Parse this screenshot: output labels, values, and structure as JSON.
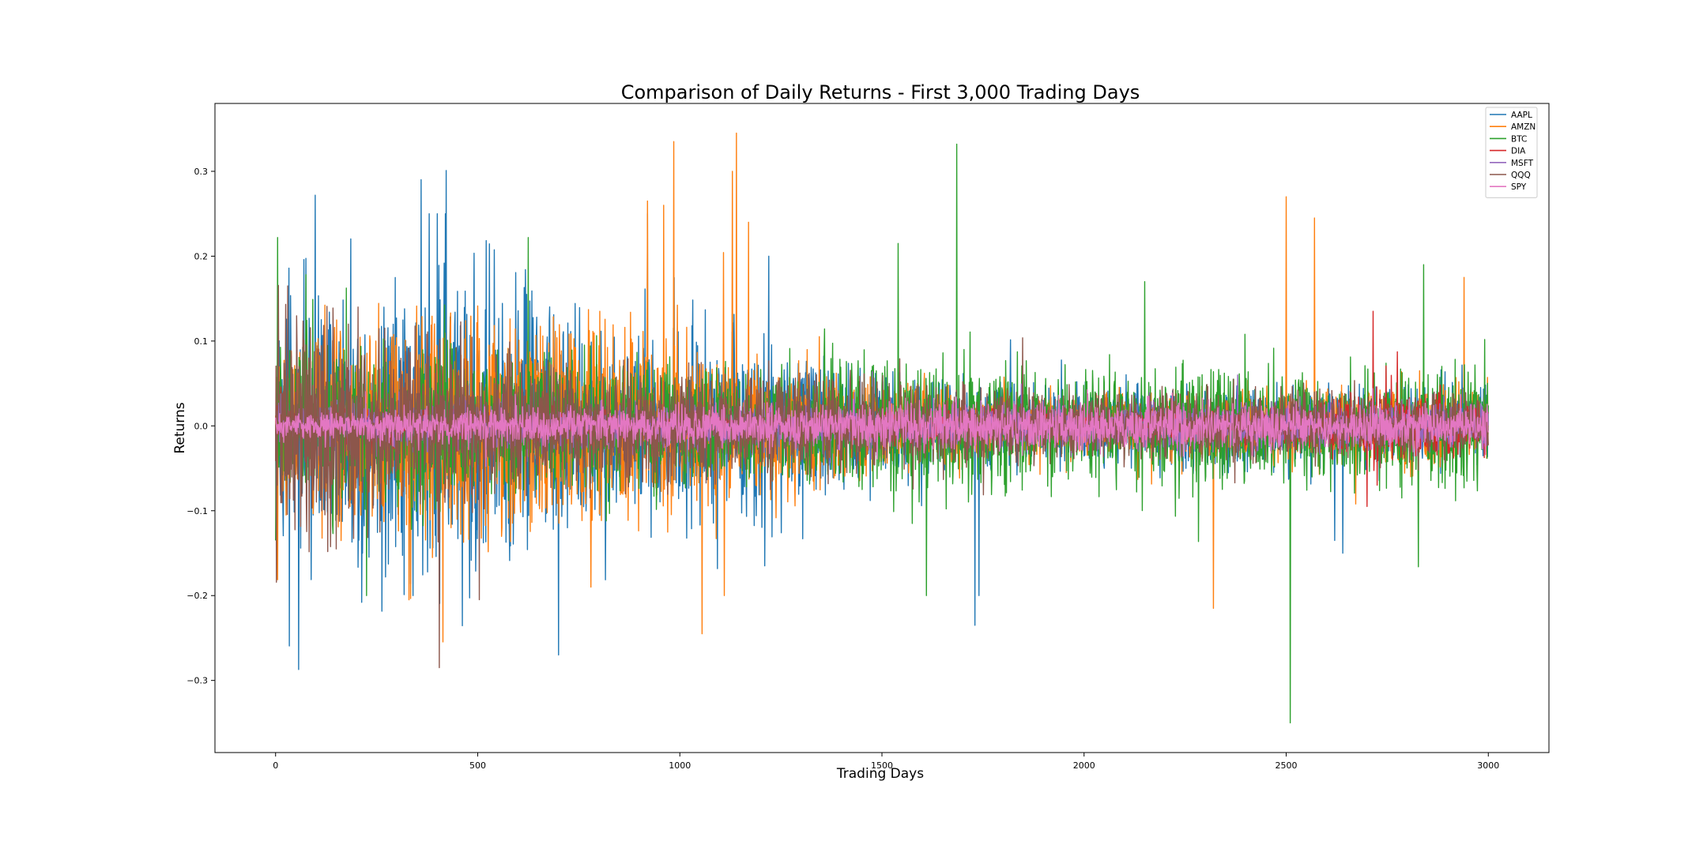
{
  "chart_data": {
    "type": "line",
    "title": "Comparison of Daily Returns - First 3,000 Trading Days",
    "xlabel": "Trading Days",
    "ylabel": "Returns",
    "xlim": [
      -150,
      3150
    ],
    "ylim": [
      -0.385,
      0.38
    ],
    "xticks": [
      0,
      500,
      1000,
      1500,
      2000,
      2500,
      3000
    ],
    "yticks": [
      -0.3,
      -0.2,
      -0.1,
      0.0,
      0.1,
      0.2,
      0.3
    ],
    "xtick_labels": [
      "0",
      "500",
      "1000",
      "1500",
      "2000",
      "2500",
      "3000"
    ],
    "ytick_labels": [
      "−0.3",
      "−0.2",
      "−0.1",
      "0.0",
      "0.1",
      "0.2",
      "0.3"
    ],
    "grid": false,
    "legend_position": "top-right",
    "x": {
      "start": 0,
      "end": 3000
    },
    "series": [
      {
        "name": "AAPL",
        "color": "#1f77b4",
        "envelope": [
          [
            0,
            0.1
          ],
          [
            400,
            0.15
          ],
          [
            800,
            0.09
          ],
          [
            1200,
            0.08
          ],
          [
            1600,
            0.04
          ],
          [
            2000,
            0.035
          ],
          [
            2400,
            0.035
          ],
          [
            2800,
            0.035
          ],
          [
            3000,
            0.035
          ]
        ],
        "spikes": [
          [
            380,
            0.25
          ],
          [
            400,
            0.25
          ],
          [
            420,
            0.25
          ],
          [
            920,
            0.25
          ],
          [
            1220,
            0.2
          ],
          [
            1210,
            -0.165
          ],
          [
            1730,
            -0.235
          ],
          [
            1740,
            0.165
          ],
          [
            700,
            -0.27
          ],
          [
            340,
            -0.2
          ],
          [
            1740,
            -0.2
          ],
          [
            2640,
            -0.15
          ],
          [
            2620,
            -0.135
          ]
        ]
      },
      {
        "name": "AMZN",
        "color": "#ff7f0e",
        "envelope": [
          [
            0,
            0.08
          ],
          [
            400,
            0.1
          ],
          [
            800,
            0.09
          ],
          [
            1200,
            0.06
          ],
          [
            1600,
            0.035
          ],
          [
            2000,
            0.03
          ],
          [
            2400,
            0.03
          ],
          [
            2800,
            0.035
          ],
          [
            3000,
            0.035
          ]
        ],
        "spikes": [
          [
            985,
            0.335
          ],
          [
            1140,
            0.345
          ],
          [
            920,
            0.265
          ],
          [
            960,
            0.26
          ],
          [
            1130,
            0.3
          ],
          [
            1170,
            0.24
          ],
          [
            2500,
            0.27
          ],
          [
            2570,
            0.245
          ],
          [
            1055,
            -0.245
          ],
          [
            2320,
            -0.215
          ],
          [
            330,
            -0.205
          ],
          [
            1110,
            -0.2
          ],
          [
            780,
            -0.19
          ],
          [
            2940,
            0.175
          ]
        ]
      },
      {
        "name": "BTC",
        "color": "#2ca02c",
        "envelope": [
          [
            0,
            0.07
          ],
          [
            400,
            0.07
          ],
          [
            800,
            0.06
          ],
          [
            1200,
            0.05
          ],
          [
            1600,
            0.06
          ],
          [
            2000,
            0.05
          ],
          [
            2400,
            0.05
          ],
          [
            2800,
            0.05
          ],
          [
            3000,
            0.05
          ]
        ],
        "spikes": [
          [
            5,
            0.222
          ],
          [
            1685,
            0.332
          ],
          [
            2510,
            -0.35
          ],
          [
            625,
            -0.22
          ],
          [
            225,
            -0.2
          ],
          [
            1610,
            -0.2
          ],
          [
            1540,
            0.215
          ],
          [
            625,
            0.222
          ],
          [
            2840,
            0.19
          ],
          [
            2150,
            0.17
          ],
          [
            0,
            -0.135
          ]
        ]
      },
      {
        "name": "DIA",
        "color": "#d62728",
        "envelope": [
          [
            0,
            0.015
          ],
          [
            400,
            0.014
          ],
          [
            800,
            0.012
          ],
          [
            1200,
            0.01
          ],
          [
            1600,
            0.012
          ],
          [
            2000,
            0.01
          ],
          [
            2400,
            0.012
          ],
          [
            2600,
            0.02
          ],
          [
            2750,
            0.04
          ],
          [
            2900,
            0.025
          ],
          [
            3000,
            0.02
          ]
        ],
        "spikes": [
          [
            2700,
            0.135
          ],
          [
            2715,
            0.135
          ],
          [
            2700,
            -0.095
          ]
        ]
      },
      {
        "name": "MSFT",
        "color": "#9467bd",
        "envelope": [
          [
            0,
            0.025
          ],
          [
            400,
            0.025
          ],
          [
            800,
            0.02
          ],
          [
            1200,
            0.02
          ],
          [
            1600,
            0.02
          ],
          [
            2000,
            0.02
          ],
          [
            2400,
            0.02
          ],
          [
            2800,
            0.02
          ],
          [
            3000,
            0.02
          ]
        ],
        "spikes": [
          [
            2380,
            0.06
          ]
        ]
      },
      {
        "name": "QQQ",
        "color": "#8c564b",
        "envelope": [
          [
            0,
            0.1
          ],
          [
            100,
            0.12
          ],
          [
            200,
            0.09
          ],
          [
            400,
            0.07
          ],
          [
            800,
            0.05
          ],
          [
            1200,
            0.045
          ],
          [
            1600,
            0.035
          ],
          [
            2000,
            0.03
          ],
          [
            2400,
            0.03
          ],
          [
            2800,
            0.03
          ],
          [
            3000,
            0.03
          ]
        ],
        "spikes": [
          [
            405,
            -0.285
          ],
          [
            30,
            0.165
          ],
          [
            150,
            0.165
          ],
          [
            150,
            -0.145
          ]
        ]
      },
      {
        "name": "SPY",
        "color": "#e377c2",
        "envelope": [
          [
            0,
            0.012
          ],
          [
            400,
            0.015
          ],
          [
            800,
            0.017
          ],
          [
            1200,
            0.018
          ],
          [
            1600,
            0.02
          ],
          [
            2000,
            0.02
          ],
          [
            2400,
            0.02
          ],
          [
            2800,
            0.018
          ],
          [
            3000,
            0.018
          ]
        ],
        "spikes": []
      }
    ]
  }
}
